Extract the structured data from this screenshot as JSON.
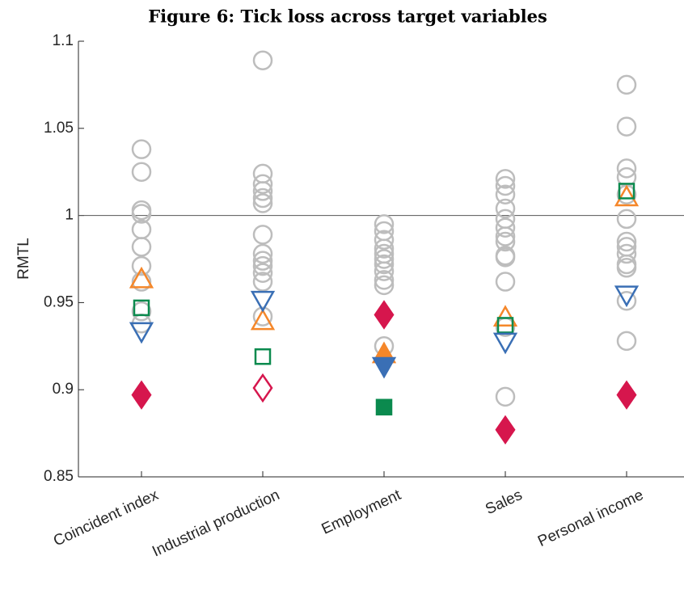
{
  "chart_data": {
    "type": "categorical-scatter",
    "title": "Figure 6: Tick loss across target variables",
    "ylabel": "RMTL",
    "categories": [
      "Coincident index",
      "Industrial production",
      "Employment",
      "Sales",
      "Personal income"
    ],
    "ylim": [
      0.85,
      1.1
    ],
    "yticks": [
      0.85,
      0.9,
      0.95,
      1,
      1.05,
      1.1
    ],
    "hline": 1,
    "series": [
      {
        "marker": "circle",
        "color": "#bdbdbd",
        "values": [
          [
            1.038,
            1.025,
            1.003,
            1.001,
            0.992,
            0.982,
            0.971,
            0.962,
            0.945,
            0.938
          ],
          [
            1.089,
            1.024,
            1.018,
            1.014,
            1.01,
            1.007,
            0.989,
            0.978,
            0.974,
            0.971,
            0.967,
            0.962,
            0.942
          ],
          [
            0.995,
            0.991,
            0.986,
            0.981,
            0.978,
            0.975,
            0.972,
            0.968,
            0.963,
            0.96,
            0.925
          ],
          [
            1.021,
            1.017,
            1.012,
            1.004,
            0.998,
            0.993,
            0.988,
            0.985,
            0.977,
            0.976,
            0.962,
            0.936,
            0.896
          ],
          [
            1.075,
            1.051,
            1.027,
            1.022,
            1.012,
            0.998,
            0.985,
            0.982,
            0.978,
            0.972,
            0.97,
            0.951,
            0.928
          ]
        ]
      },
      {
        "marker": "triangle-up",
        "color": "#f5872a",
        "values": [
          0.963,
          0.939,
          0.92,
          0.941,
          1.01
        ],
        "filled": [
          false,
          false,
          true,
          false,
          false
        ]
      },
      {
        "marker": "square",
        "color": "#0b8a4e",
        "values": [
          0.947,
          0.919,
          0.89,
          0.937,
          1.014
        ],
        "filled": [
          false,
          false,
          true,
          false,
          false
        ]
      },
      {
        "marker": "triangle-down",
        "color": "#3a6fb5",
        "values": [
          0.934,
          0.952,
          0.914,
          0.928,
          0.955
        ],
        "filled": [
          false,
          false,
          true,
          false,
          false
        ]
      },
      {
        "marker": "diamond",
        "color": "#d6164d",
        "values": [
          0.897,
          0.901,
          0.943,
          0.877,
          0.897
        ],
        "filled": [
          true,
          false,
          true,
          true,
          true
        ]
      }
    ]
  }
}
